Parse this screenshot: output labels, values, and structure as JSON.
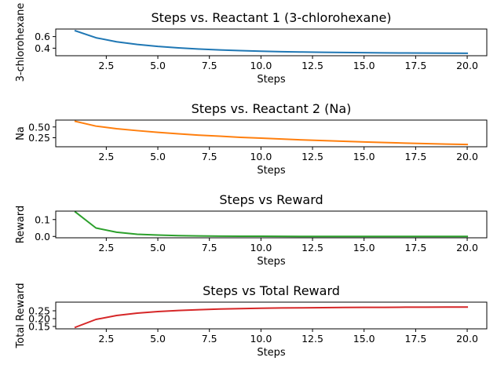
{
  "chart_data": [
    {
      "type": "line",
      "title": "Steps vs. Reactant 1 (3-chlorohexane)",
      "xlabel": "Steps",
      "ylabel": "3-chlorohexane",
      "color": "#1f77b4",
      "xlim": [
        0.05,
        20.95
      ],
      "ylim": [
        0.27,
        0.73
      ],
      "xticks": [
        2.5,
        5.0,
        7.5,
        10.0,
        12.5,
        15.0,
        17.5,
        20.0
      ],
      "xtick_labels": [
        "2.5",
        "5.0",
        "7.5",
        "10.0",
        "12.5",
        "15.0",
        "17.5",
        "20.0"
      ],
      "yticks": [
        0.4,
        0.6
      ],
      "ytick_labels": [
        "0.4",
        "0.6"
      ],
      "grid": false,
      "legend": "none",
      "series": [
        {
          "x": [
            1,
            2,
            3,
            4,
            5,
            6,
            7,
            8,
            9,
            10,
            11,
            12,
            13,
            14,
            15,
            16,
            17,
            18,
            19,
            20
          ],
          "values": [
            0.7,
            0.58,
            0.51,
            0.465,
            0.43,
            0.405,
            0.385,
            0.37,
            0.358,
            0.348,
            0.34,
            0.334,
            0.329,
            0.325,
            0.322,
            0.319,
            0.317,
            0.315,
            0.314,
            0.313
          ]
        }
      ]
    },
    {
      "type": "line",
      "title": "Steps vs. Reactant 2 (Na)",
      "xlabel": "Steps",
      "ylabel": "Na",
      "color": "#ff7f0e",
      "xlim": [
        0.05,
        20.95
      ],
      "ylim": [
        0.04,
        0.66
      ],
      "xticks": [
        2.5,
        5.0,
        7.5,
        10.0,
        12.5,
        15.0,
        17.5,
        20.0
      ],
      "xtick_labels": [
        "2.5",
        "5.0",
        "7.5",
        "10.0",
        "12.5",
        "15.0",
        "17.5",
        "20.0"
      ],
      "yticks": [
        0.25,
        0.5
      ],
      "ytick_labels": [
        "0.25",
        "0.50"
      ],
      "grid": false,
      "legend": "none",
      "series": [
        {
          "x": [
            1,
            2,
            3,
            4,
            5,
            6,
            7,
            8,
            9,
            10,
            11,
            12,
            13,
            14,
            15,
            16,
            17,
            18,
            19,
            20
          ],
          "values": [
            0.63,
            0.52,
            0.46,
            0.415,
            0.375,
            0.34,
            0.31,
            0.285,
            0.26,
            0.24,
            0.22,
            0.2,
            0.183,
            0.167,
            0.152,
            0.138,
            0.125,
            0.113,
            0.102,
            0.093
          ]
        }
      ]
    },
    {
      "type": "line",
      "title": "Steps vs Reward",
      "xlabel": "Steps",
      "ylabel": "Reward",
      "color": "#2ca02c",
      "xlim": [
        0.05,
        20.95
      ],
      "ylim": [
        -0.008,
        0.15
      ],
      "xticks": [
        2.5,
        5.0,
        7.5,
        10.0,
        12.5,
        15.0,
        17.5,
        20.0
      ],
      "xtick_labels": [
        "2.5",
        "5.0",
        "7.5",
        "10.0",
        "12.5",
        "15.0",
        "17.5",
        "20.0"
      ],
      "yticks": [
        0.0,
        0.1
      ],
      "ytick_labels": [
        "0.0",
        "0.1"
      ],
      "grid": false,
      "legend": "none",
      "series": [
        {
          "x": [
            1,
            2,
            3,
            4,
            5,
            6,
            7,
            8,
            9,
            10,
            11,
            12,
            13,
            14,
            15,
            16,
            17,
            18,
            19,
            20
          ],
          "values": [
            0.145,
            0.05,
            0.025,
            0.013,
            0.008,
            0.005,
            0.003,
            0.002,
            0.001,
            0.001,
            0.0005,
            0.0003,
            0.0002,
            0.0001,
            0.0,
            0.0,
            0.0,
            0.0,
            0.0,
            0.0
          ]
        }
      ]
    },
    {
      "type": "line",
      "title": "Steps vs Total Reward",
      "xlabel": "Steps",
      "ylabel": "Total Reward",
      "color": "#d62728",
      "xlim": [
        0.05,
        20.95
      ],
      "ylim": [
        0.135,
        0.305
      ],
      "xticks": [
        2.5,
        5.0,
        7.5,
        10.0,
        12.5,
        15.0,
        17.5,
        20.0
      ],
      "xtick_labels": [
        "2.5",
        "5.0",
        "7.5",
        "10.0",
        "12.5",
        "15.0",
        "17.5",
        "20.0"
      ],
      "yticks": [
        0.15,
        0.2,
        0.25
      ],
      "ytick_labels": [
        "0.15",
        "0.20",
        "0.25"
      ],
      "grid": false,
      "legend": "none",
      "series": [
        {
          "x": [
            1,
            2,
            3,
            4,
            5,
            6,
            7,
            8,
            9,
            10,
            11,
            12,
            13,
            14,
            15,
            16,
            17,
            18,
            19,
            20
          ],
          "values": [
            0.145,
            0.195,
            0.22,
            0.235,
            0.245,
            0.252,
            0.257,
            0.261,
            0.264,
            0.266,
            0.268,
            0.269,
            0.27,
            0.271,
            0.272,
            0.272,
            0.273,
            0.273,
            0.274,
            0.274
          ]
        }
      ]
    }
  ]
}
